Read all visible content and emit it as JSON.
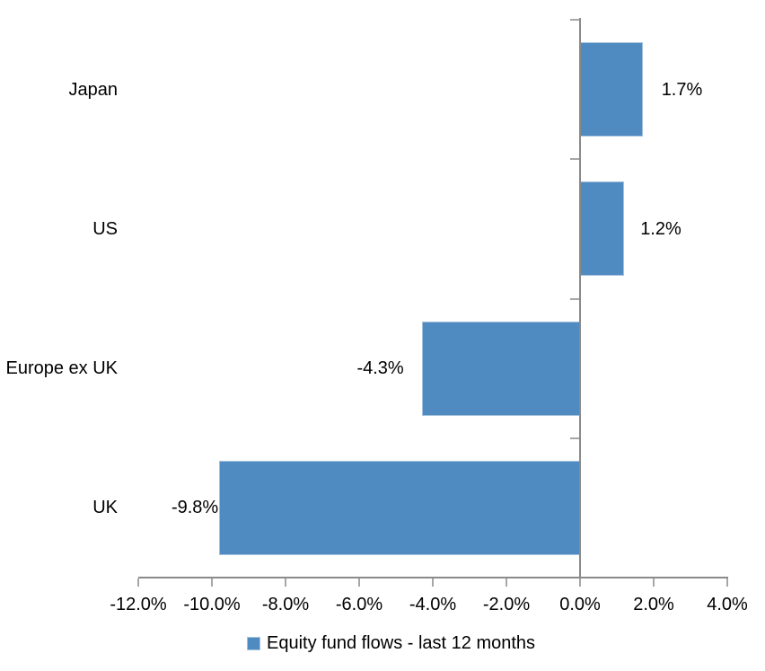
{
  "chart_data": {
    "type": "bar",
    "orientation": "horizontal",
    "title": "",
    "categories": [
      "Japan",
      "US",
      "Europe ex UK",
      "UK"
    ],
    "series": [
      {
        "name": "Equity fund flows - last 12 months",
        "values": [
          1.7,
          1.2,
          -4.3,
          -9.8
        ],
        "labels": [
          "1.7%",
          "1.2%",
          "-4.3%",
          "-9.8%"
        ]
      }
    ],
    "xlabel": "",
    "ylabel": "",
    "xlim": [
      -12,
      4
    ],
    "x_tick_step": 2,
    "x_tick_labels": [
      "-12.0%",
      "-10.0%",
      "-8.0%",
      "-6.0%",
      "-4.0%",
      "-2.0%",
      "0.0%",
      "2.0%",
      "4.0%"
    ],
    "grid": false,
    "legend_position": "bottom",
    "value_format": "0.0%",
    "colors": {
      "bar": "#4F8AC0",
      "bar_edge": "#A3C1DC",
      "axis": "#8A8A8A",
      "tick": "#A6A6A6",
      "text": "#000000"
    }
  }
}
